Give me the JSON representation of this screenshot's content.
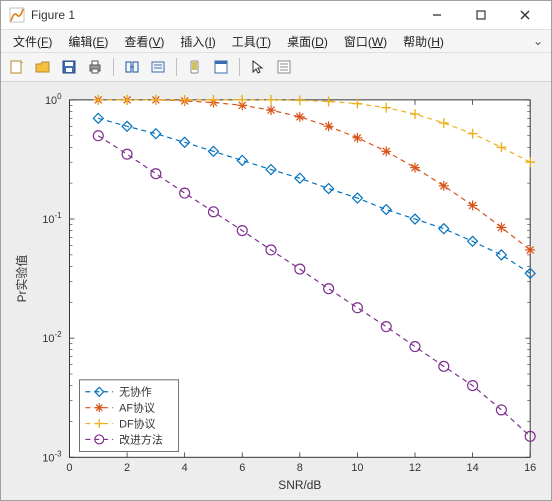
{
  "window": {
    "title": "Figure 1"
  },
  "menu": {
    "file": {
      "label": "文件",
      "key": "F"
    },
    "edit": {
      "label": "编辑",
      "key": "E"
    },
    "view": {
      "label": "查看",
      "key": "V"
    },
    "insert": {
      "label": "插入",
      "key": "I"
    },
    "tools": {
      "label": "工具",
      "key": "T"
    },
    "desktop": {
      "label": "桌面",
      "key": "D"
    },
    "window2": {
      "label": "窗口",
      "key": "W"
    },
    "help": {
      "label": "帮助",
      "key": "H"
    }
  },
  "chart": {
    "type": "line-log",
    "xlabel": "SNR/dB",
    "ylabel": "Pr实验值",
    "xlim": [
      0,
      16
    ],
    "xtick_step": 2,
    "xticks": [
      0,
      2,
      4,
      6,
      8,
      10,
      12,
      14,
      16
    ],
    "yscale": "log",
    "ylim_exp": [
      -3,
      0
    ],
    "yticks_exp": [
      -3,
      -2,
      -1,
      0
    ],
    "ytick_labels": [
      "10^{-3}",
      "10^{-2}",
      "10^{-1}",
      "10^{0}"
    ],
    "background_color": "#ffffff",
    "grid": false,
    "axis_color": "#333333",
    "tick_fontsize": 11,
    "label_fontsize": 12,
    "line_width": 1.2,
    "line_dash": "5,4",
    "marker_size": 5,
    "series": [
      {
        "name": "无协作",
        "color": "#0072bd",
        "marker": "diamond",
        "x": [
          1,
          2,
          3,
          4,
          5,
          6,
          7,
          8,
          9,
          10,
          11,
          12,
          13,
          14,
          15,
          16
        ],
        "y": [
          0.7,
          0.6,
          0.52,
          0.44,
          0.37,
          0.31,
          0.26,
          0.22,
          0.18,
          0.15,
          0.12,
          0.1,
          0.083,
          0.065,
          0.05,
          0.035
        ]
      },
      {
        "name": "AF协议",
        "color": "#d95319",
        "marker": "star",
        "x": [
          1,
          2,
          3,
          4,
          5,
          6,
          7,
          8,
          9,
          10,
          11,
          12,
          13,
          14,
          15,
          16
        ],
        "y": [
          1.0,
          1.0,
          1.0,
          0.98,
          0.95,
          0.9,
          0.82,
          0.72,
          0.6,
          0.48,
          0.37,
          0.27,
          0.19,
          0.13,
          0.085,
          0.055
        ]
      },
      {
        "name": "DF协议",
        "color": "#edb120",
        "marker": "plus",
        "x": [
          1,
          2,
          3,
          4,
          5,
          6,
          7,
          8,
          9,
          10,
          11,
          12,
          13,
          14,
          15,
          16
        ],
        "y": [
          1.0,
          1.0,
          1.0,
          1.0,
          1.0,
          1.0,
          1.0,
          0.99,
          0.97,
          0.93,
          0.86,
          0.76,
          0.64,
          0.52,
          0.4,
          0.3
        ]
      },
      {
        "name": "改进方法",
        "color": "#7e2f8e",
        "marker": "circle",
        "x": [
          1,
          2,
          3,
          4,
          5,
          6,
          7,
          8,
          9,
          10,
          11,
          12,
          13,
          14,
          15,
          16
        ],
        "y": [
          0.5,
          0.35,
          0.24,
          0.165,
          0.115,
          0.08,
          0.055,
          0.038,
          0.026,
          0.018,
          0.0125,
          0.0085,
          0.0058,
          0.004,
          0.0025,
          0.0015
        ]
      }
    ],
    "legend": {
      "position": "lower-left",
      "items": [
        "无协作",
        "AF协议",
        "DF协议",
        "改进方法"
      ]
    }
  }
}
